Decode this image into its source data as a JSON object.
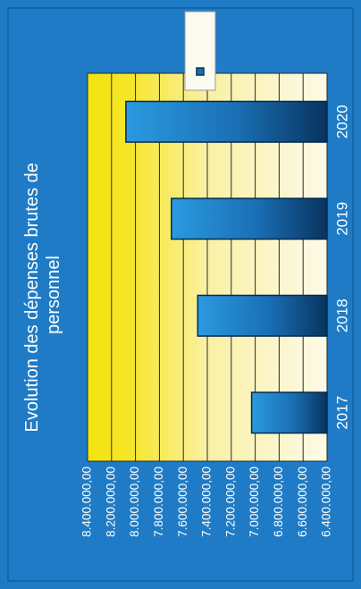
{
  "chart_data": {
    "type": "bar",
    "orientation": "horizontal",
    "title": "Evolution des dépenses brutes de personnel",
    "categories": [
      "2017",
      "2018",
      "2019",
      "2020"
    ],
    "values": [
      7030000,
      7480000,
      7700000,
      8080000
    ],
    "series": [
      {
        "name": "",
        "values": [
          7030000,
          7480000,
          7700000,
          8080000
        ]
      }
    ],
    "ylim": [
      6400000,
      8400000
    ],
    "ticks": [
      "6.400.000,00",
      "6.600.000,00",
      "6.800.000,00",
      "7.000.000,00",
      "7.200.000,00",
      "7.400.000,00",
      "7.600.000,00",
      "7.800.000,00",
      "8.000.000,00",
      "8.200.000,00",
      "8.400.000,00"
    ],
    "grid": true,
    "legend": "top-right",
    "colors": {
      "background": "#1f7bc6",
      "bar_light": "#2b9ae0",
      "bar_dark": "#08335e",
      "plot_yellow": "#f3e40c",
      "plot_pale": "#fdfae8",
      "grid": "#2a2a2a",
      "text": "#ffffff"
    }
  }
}
